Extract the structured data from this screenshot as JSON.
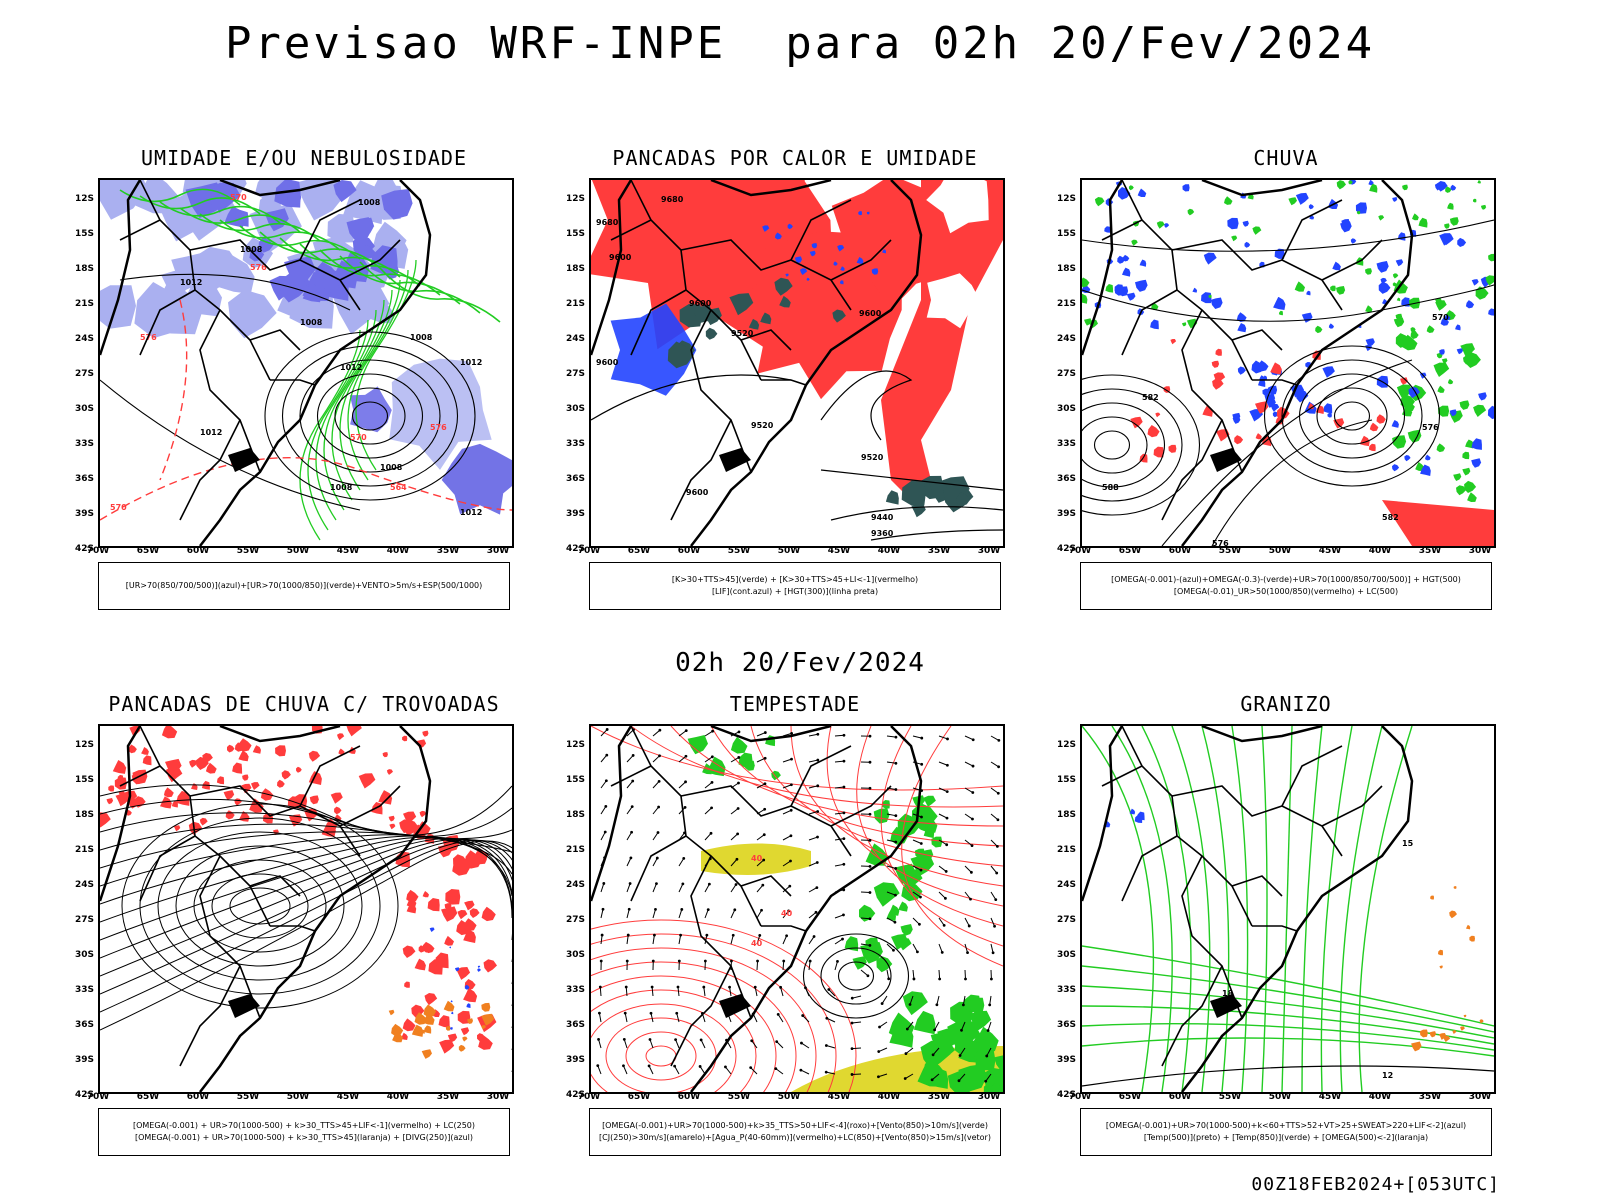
{
  "header": {
    "title": "Previsao WRF-INPE  para 02h 20/Fev/2024",
    "subtitle": "02h 20/Fev/2024",
    "footer": "00Z18FEB2024+[053UTC]"
  },
  "axes": {
    "lat_labels": [
      "12S",
      "15S",
      "18S",
      "21S",
      "24S",
      "27S",
      "30S",
      "33S",
      "36S",
      "39S",
      "42S"
    ],
    "lon_labels": [
      "70W",
      "65W",
      "60W",
      "55W",
      "50W",
      "45W",
      "40W",
      "35W",
      "30W"
    ]
  },
  "panels": [
    {
      "title": "UMIDADE E/OU NEBULOSIDADE",
      "caption": [
        "[UR>70(850/700/500)](azul)+[UR>70(1000/850)](verde)+VENTO>5m/s+ESP(500/1000)"
      ],
      "contour_labels": [
        "1012",
        "1008",
        "1008",
        "1008",
        "1008",
        "1012",
        "1012",
        "1012",
        "1008",
        "1008",
        "1012",
        "570",
        "576",
        "570",
        "576",
        "564",
        "570",
        "576"
      ]
    },
    {
      "title": "PANCADAS POR CALOR E UMIDADE",
      "caption": [
        "[K>30+TTS>45](verde) + [K>30+TTS>45+LI<-1](vermelho)",
        "[LIF](cont.azul) + [HGT(300)](linha preta)"
      ],
      "contour_labels": [
        "9680",
        "9680",
        "9600",
        "9600",
        "9520",
        "9600",
        "9600",
        "9520",
        "9520",
        "9440",
        "9360",
        "9600"
      ]
    },
    {
      "title": "CHUVA",
      "caption": [
        "[OMEGA(-0.001)-(azul)+OMEGA(-0.3)-(verde)+UR>70(1000/850/700/500)] + HGT(500)",
        "[OMEGA(-0.01)_UR>50(1000/850)(vermelho) + LC(500)"
      ],
      "contour_labels": [
        "582",
        "588",
        "576",
        "570",
        "576",
        "582"
      ]
    },
    {
      "title": "PANCADAS DE CHUVA C/ TROVOADAS",
      "caption": [
        "[OMEGA(-0.001) + UR>70(1000-500) + k>30_TTS>45+LIF<-1](vermelho) + LC(250)",
        "[OMEGA(-0.001) + UR>70(1000-500) + k>30_TTS>45](laranja) + [DIVG(250)](azul)"
      ],
      "contour_labels": []
    },
    {
      "title": "TEMPESTADE",
      "caption": [
        "[OMEGA(-0.001)+UR>70(1000-500)+k>35_TTS>50+LIF<-4](roxo)+[Vento(850)>10m/s](verde)",
        "[CJ(250)>30m/s](amarelo)+[Agua_P(40-60mm)](vermelho)+LC(850)+[Vento(850)>15m/s](vetor)"
      ],
      "contour_labels": [
        "40",
        "40",
        "40"
      ]
    },
    {
      "title": "GRANIZO",
      "caption": [
        "[OMEGA(-0.001)+UR>70(1000-500)+k<60+TTS>52+VT>25+SWEAT>220+LIF<-2](azul)",
        "[Temp(500)](preto) + [Temp(850)](verde) + [OMEGA(500)<-2](laranja)"
      ],
      "contour_labels": [
        "12",
        "18",
        "15"
      ]
    }
  ],
  "colors": {
    "red": "#ff3c3c",
    "green": "#22cc22",
    "blue": "#2244ff",
    "lightblue": "#aab0f0",
    "darkteal": "#2f5555",
    "yellow": "#e0d830",
    "orange": "#f08020"
  }
}
